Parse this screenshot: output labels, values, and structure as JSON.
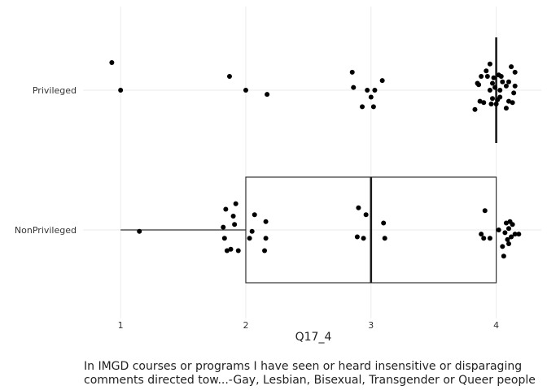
{
  "chart_data": {
    "type": "boxplot",
    "orientation": "horizontal",
    "xlabel": "Q17_4",
    "caption_lines": [
      "In IMGD courses or programs I have seen or heard insensitive or disparaging",
      "comments directed tow...-Gay, Lesbian, Bisexual, Transgender or Queer people"
    ],
    "x_ticks": [
      1,
      2,
      3,
      4
    ],
    "xlim": [
      0.7,
      4.36
    ],
    "grid": true,
    "groups": [
      {
        "name": "Privileged",
        "box": {
          "min": 4,
          "q1": 4,
          "median": 4,
          "q3": 4,
          "max": 4
        },
        "points": [
          [
            0.93,
            0.2
          ],
          [
            1.0,
            0.0
          ],
          [
            1.87,
            0.1
          ],
          [
            2.0,
            0.0
          ],
          [
            2.17,
            -0.03
          ],
          [
            2.85,
            0.13
          ],
          [
            2.86,
            0.02
          ],
          [
            2.97,
            0.0
          ],
          [
            3.0,
            -0.05
          ],
          [
            3.02,
            -0.12
          ],
          [
            3.09,
            0.07
          ],
          [
            2.93,
            -0.12
          ],
          [
            3.03,
            0.0
          ],
          [
            3.85,
            0.05
          ],
          [
            3.88,
            0.1
          ],
          [
            3.92,
            0.14
          ],
          [
            3.95,
            0.19
          ],
          [
            3.98,
            0.09
          ],
          [
            4.02,
            0.11
          ],
          [
            4.05,
            0.06
          ],
          [
            4.08,
            0.03
          ],
          [
            4.12,
            0.17
          ],
          [
            4.15,
            0.13
          ],
          [
            3.87,
            -0.08
          ],
          [
            3.9,
            -0.09
          ],
          [
            3.97,
            -0.06
          ],
          [
            4.0,
            -0.1
          ],
          [
            4.03,
            0.0
          ],
          [
            4.1,
            -0.08
          ],
          [
            4.13,
            -0.09
          ],
          [
            4.15,
            0.03
          ],
          [
            3.96,
            -0.1
          ],
          [
            4.03,
            -0.05
          ],
          [
            3.93,
            0.1
          ],
          [
            3.83,
            -0.14
          ],
          [
            4.08,
            -0.13
          ],
          [
            3.97,
            0.05
          ],
          [
            4.04,
            0.1
          ],
          [
            3.86,
            0.04
          ],
          [
            4.1,
            0.06
          ],
          [
            3.99,
            0.02
          ],
          [
            4.14,
            -0.02
          ],
          [
            3.95,
            0.0
          ],
          [
            4.01,
            -0.07
          ]
        ]
      },
      {
        "name": "NonPrivileged",
        "box": {
          "min": 1,
          "q1": 2,
          "median": 3,
          "q3": 4,
          "max": 4
        },
        "points": [
          [
            1.15,
            -0.01
          ],
          [
            1.82,
            0.02
          ],
          [
            1.83,
            -0.06
          ],
          [
            1.84,
            0.15
          ],
          [
            1.85,
            -0.15
          ],
          [
            1.88,
            -0.14
          ],
          [
            1.9,
            0.1
          ],
          [
            1.91,
            0.04
          ],
          [
            1.92,
            0.19
          ],
          [
            1.94,
            -0.15
          ],
          [
            2.03,
            -0.06
          ],
          [
            2.05,
            -0.01
          ],
          [
            2.07,
            0.11
          ],
          [
            2.15,
            -0.15
          ],
          [
            2.16,
            0.06
          ],
          [
            2.16,
            -0.06
          ],
          [
            2.89,
            -0.05
          ],
          [
            2.9,
            0.16
          ],
          [
            2.94,
            -0.06
          ],
          [
            2.96,
            0.11
          ],
          [
            3.1,
            0.05
          ],
          [
            3.11,
            -0.06
          ],
          [
            3.88,
            -0.03
          ],
          [
            3.9,
            -0.06
          ],
          [
            3.91,
            0.14
          ],
          [
            3.95,
            -0.06
          ],
          [
            4.05,
            -0.12
          ],
          [
            4.06,
            -0.19
          ],
          [
            4.07,
            -0.02
          ],
          [
            4.08,
            0.05
          ],
          [
            4.09,
            -0.07
          ],
          [
            4.1,
            0.01
          ],
          [
            4.11,
            0.06
          ],
          [
            4.12,
            -0.05
          ],
          [
            4.15,
            -0.03
          ],
          [
            4.18,
            -0.03
          ],
          [
            4.02,
            0.0
          ],
          [
            4.13,
            0.04
          ],
          [
            4.1,
            -0.1
          ]
        ]
      }
    ]
  }
}
